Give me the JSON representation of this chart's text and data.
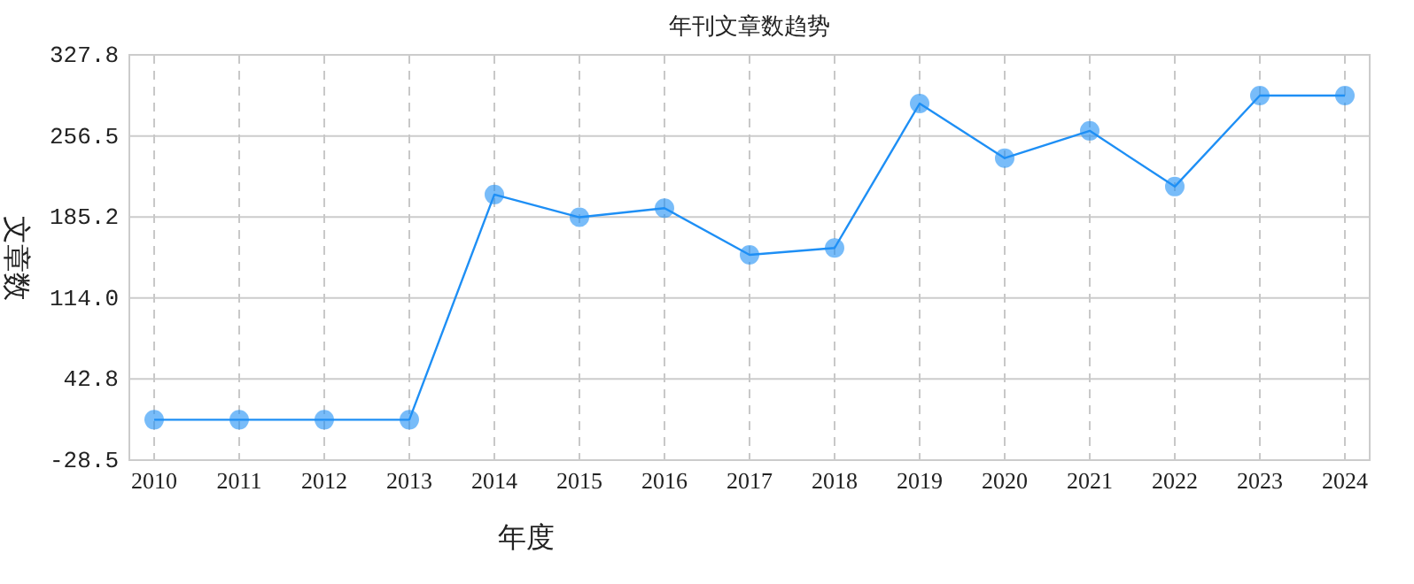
{
  "chart_data": {
    "type": "line",
    "title": "年刊文章数趋势",
    "xlabel": "年度",
    "ylabel": "文章数",
    "categories": [
      "2010",
      "2011",
      "2012",
      "2013",
      "2014",
      "2015",
      "2016",
      "2017",
      "2018",
      "2019",
      "2020",
      "2021",
      "2022",
      "2023",
      "2024"
    ],
    "series": [
      {
        "color": "#1e8ff5",
        "values": [
          7,
          7,
          7,
          7,
          205,
          185,
          193,
          152,
          158,
          285,
          237,
          261,
          212,
          292,
          292
        ]
      }
    ],
    "ylim": [
      -28.5,
      327.8
    ],
    "yticks": [
      -28.5,
      42.8,
      {
        "value": 114,
        "label": "114.0"
      },
      185.2,
      256.5,
      327.8
    ],
    "grid": true,
    "marker": "circle",
    "line_style": "solid"
  }
}
